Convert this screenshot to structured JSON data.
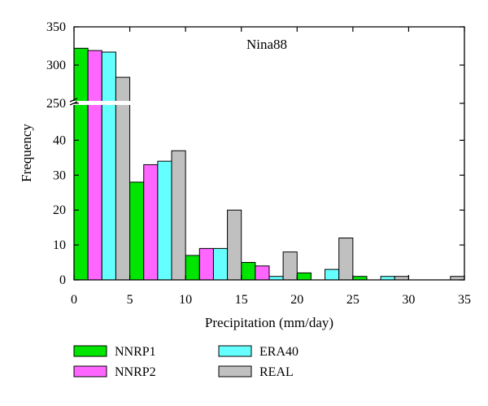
{
  "chart_data": {
    "type": "bar",
    "title": "Nina88",
    "xlabel": "Precipitation (mm/day)",
    "ylabel": "Frequency",
    "x_ticks": [
      0,
      5,
      10,
      15,
      20,
      25,
      30,
      35
    ],
    "xlim": [
      0,
      35
    ],
    "y_axis_break": {
      "lower_range": [
        0,
        50
      ],
      "upper_range": [
        250,
        350
      ]
    },
    "y_ticks_lower": [
      0,
      10,
      20,
      30,
      40
    ],
    "y_ticks_upper": [
      250,
      300,
      350
    ],
    "bin_starts": [
      0,
      5,
      10,
      15,
      20,
      25,
      30
    ],
    "bin_width": 5,
    "series": [
      {
        "name": "NNRP1",
        "color": "#00e600",
        "values": [
          322,
          28,
          7,
          5,
          2,
          1,
          0
        ]
      },
      {
        "name": "NNRP2",
        "color": "#ff66ff",
        "values": [
          319,
          33,
          9,
          4,
          0,
          0,
          0
        ]
      },
      {
        "name": "ERA40",
        "color": "#66ffff",
        "values": [
          317,
          34,
          9,
          1,
          3,
          1,
          0
        ]
      },
      {
        "name": "REAL",
        "color": "#c0c0c0",
        "values": [
          284,
          37,
          20,
          8,
          12,
          1,
          1
        ]
      }
    ],
    "grid": false,
    "legend_position": "bottom"
  }
}
